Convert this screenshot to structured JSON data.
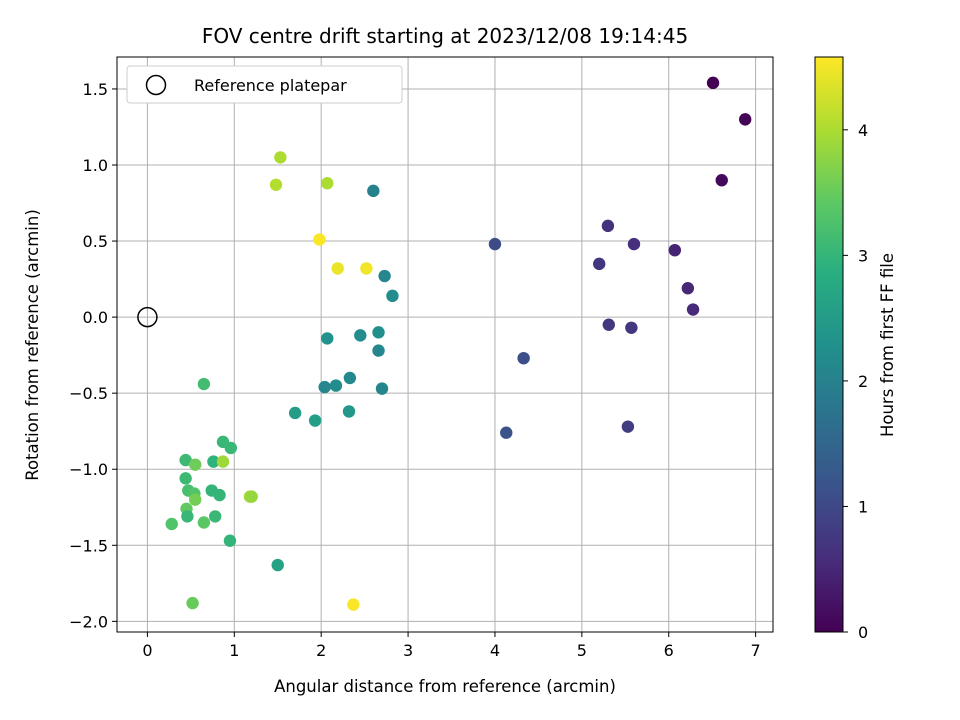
{
  "chart_data": {
    "type": "scatter",
    "title": "FOV centre drift starting at 2023/12/08 19:14:45",
    "xlabel": "Angular distance from reference (arcmin)",
    "ylabel": "Rotation from reference (arcmin)",
    "xlim": [
      -0.35,
      7.2
    ],
    "ylim": [
      -2.07,
      1.71
    ],
    "xticks": [
      0,
      1,
      2,
      3,
      4,
      5,
      6,
      7
    ],
    "yticks": [
      -2.0,
      -1.5,
      -1.0,
      -0.5,
      0.0,
      0.5,
      1.0,
      1.5
    ],
    "xtick_labels": [
      "0",
      "1",
      "2",
      "3",
      "4",
      "5",
      "6",
      "7"
    ],
    "ytick_labels": [
      "−2.0",
      "−1.5",
      "−1.0",
      "−0.5",
      "0.0",
      "0.5",
      "1.0",
      "1.5"
    ],
    "grid": true,
    "colormap": "viridis",
    "colorbar": {
      "label": "Hours from first FF file",
      "range": [
        0,
        4.58
      ],
      "ticks": [
        0,
        1,
        2,
        3,
        4
      ],
      "tick_labels": [
        "0",
        "1",
        "2",
        "3",
        "4"
      ]
    },
    "legend": {
      "placement": "top-left",
      "entries": [
        {
          "label": "Reference platepar",
          "marker": "hollow-circle"
        }
      ]
    },
    "reference_point": {
      "x": 0,
      "y": 0
    },
    "points": [
      {
        "x": 6.51,
        "y": 1.54,
        "hours": 0.0
      },
      {
        "x": 6.88,
        "y": 1.3,
        "hours": 0.05
      },
      {
        "x": 6.61,
        "y": 0.9,
        "hours": 0.1
      },
      {
        "x": 6.07,
        "y": 0.44,
        "hours": 0.45
      },
      {
        "x": 6.22,
        "y": 0.19,
        "hours": 0.5
      },
      {
        "x": 6.28,
        "y": 0.05,
        "hours": 0.55
      },
      {
        "x": 5.3,
        "y": 0.6,
        "hours": 0.65
      },
      {
        "x": 5.6,
        "y": 0.48,
        "hours": 0.6
      },
      {
        "x": 5.2,
        "y": 0.35,
        "hours": 0.7
      },
      {
        "x": 5.31,
        "y": -0.05,
        "hours": 0.75
      },
      {
        "x": 5.57,
        "y": -0.07,
        "hours": 0.72
      },
      {
        "x": 5.53,
        "y": -0.72,
        "hours": 0.8
      },
      {
        "x": 4.0,
        "y": 0.48,
        "hours": 1.05
      },
      {
        "x": 4.33,
        "y": -0.27,
        "hours": 1.1
      },
      {
        "x": 4.13,
        "y": -0.76,
        "hours": 1.15
      },
      {
        "x": 2.6,
        "y": 0.83,
        "hours": 2.0
      },
      {
        "x": 2.73,
        "y": 0.27,
        "hours": 2.1
      },
      {
        "x": 2.82,
        "y": 0.14,
        "hours": 2.2
      },
      {
        "x": 2.45,
        "y": -0.12,
        "hours": 2.2
      },
      {
        "x": 2.66,
        "y": -0.1,
        "hours": 2.25
      },
      {
        "x": 2.07,
        "y": -0.14,
        "hours": 2.3
      },
      {
        "x": 2.66,
        "y": -0.22,
        "hours": 2.1
      },
      {
        "x": 2.33,
        "y": -0.4,
        "hours": 2.15
      },
      {
        "x": 2.17,
        "y": -0.45,
        "hours": 2.2
      },
      {
        "x": 2.04,
        "y": -0.46,
        "hours": 2.1
      },
      {
        "x": 2.7,
        "y": -0.47,
        "hours": 2.05
      },
      {
        "x": 1.7,
        "y": -0.63,
        "hours": 2.5
      },
      {
        "x": 1.93,
        "y": -0.68,
        "hours": 2.55
      },
      {
        "x": 2.32,
        "y": -0.62,
        "hours": 2.4
      },
      {
        "x": 1.5,
        "y": -1.63,
        "hours": 2.6
      },
      {
        "x": 0.65,
        "y": -0.44,
        "hours": 3.15
      },
      {
        "x": 0.44,
        "y": -0.94,
        "hours": 3.1
      },
      {
        "x": 0.55,
        "y": -0.97,
        "hours": 3.55
      },
      {
        "x": 0.76,
        "y": -0.95,
        "hours": 2.95
      },
      {
        "x": 0.87,
        "y": -0.82,
        "hours": 3.05
      },
      {
        "x": 0.96,
        "y": -0.86,
        "hours": 3.05
      },
      {
        "x": 0.87,
        "y": -0.95,
        "hours": 3.9
      },
      {
        "x": 0.44,
        "y": -1.06,
        "hours": 3.1
      },
      {
        "x": 0.47,
        "y": -1.14,
        "hours": 3.2
      },
      {
        "x": 0.54,
        "y": -1.16,
        "hours": 3.3
      },
      {
        "x": 0.55,
        "y": -1.2,
        "hours": 3.6
      },
      {
        "x": 0.74,
        "y": -1.14,
        "hours": 3.0
      },
      {
        "x": 0.83,
        "y": -1.17,
        "hours": 3.0
      },
      {
        "x": 0.45,
        "y": -1.26,
        "hours": 3.45
      },
      {
        "x": 0.46,
        "y": -1.31,
        "hours": 3.05
      },
      {
        "x": 0.78,
        "y": -1.31,
        "hours": 3.05
      },
      {
        "x": 0.65,
        "y": -1.35,
        "hours": 3.4
      },
      {
        "x": 0.28,
        "y": -1.36,
        "hours": 3.3
      },
      {
        "x": 0.95,
        "y": -1.47,
        "hours": 3.0
      },
      {
        "x": 1.18,
        "y": -1.18,
        "hours": 3.95
      },
      {
        "x": 1.2,
        "y": -1.18,
        "hours": 3.85
      },
      {
        "x": 0.52,
        "y": -1.88,
        "hours": 3.5
      },
      {
        "x": 1.53,
        "y": 1.05,
        "hours": 4.0
      },
      {
        "x": 1.48,
        "y": 0.87,
        "hours": 4.05
      },
      {
        "x": 2.07,
        "y": 0.88,
        "hours": 4.0
      },
      {
        "x": 1.98,
        "y": 0.51,
        "hours": 4.55
      },
      {
        "x": 2.19,
        "y": 0.32,
        "hours": 4.45
      },
      {
        "x": 2.52,
        "y": 0.32,
        "hours": 4.5
      },
      {
        "x": 2.37,
        "y": -1.89,
        "hours": 4.55
      }
    ]
  }
}
